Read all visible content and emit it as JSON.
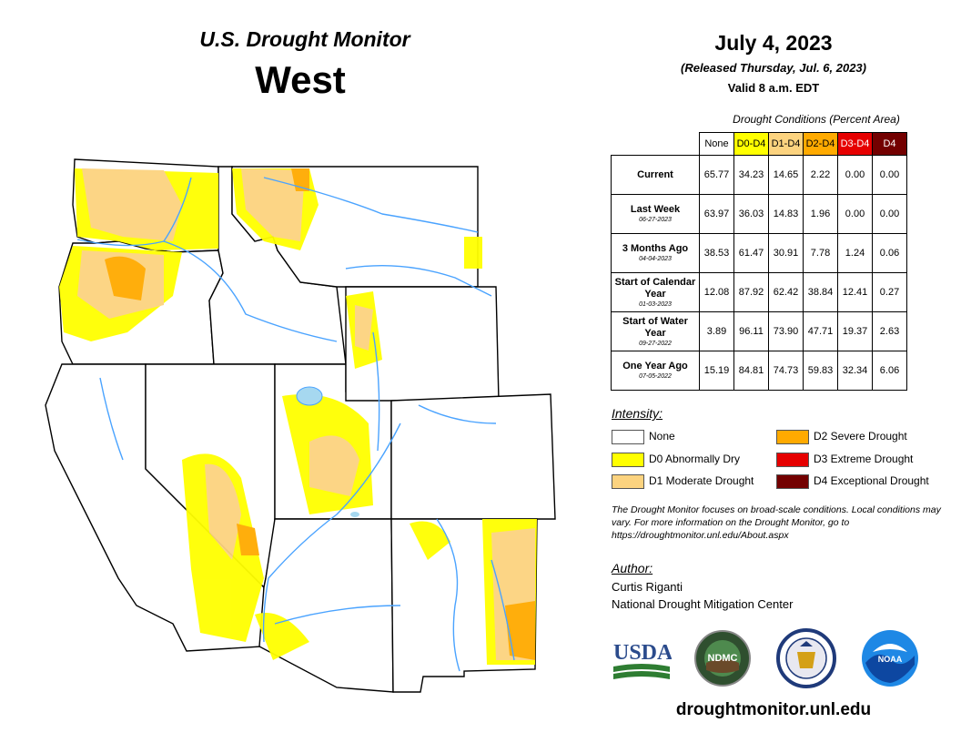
{
  "header": {
    "product": "U.S. Drought Monitor",
    "region": "West",
    "date": "July 4, 2023",
    "released": "(Released Thursday, Jul. 6, 2023)",
    "valid": "Valid 8 a.m. EDT"
  },
  "table": {
    "caption": "Drought Conditions (Percent Area)",
    "columns": [
      {
        "label": "None",
        "color": "#ffffff",
        "text_color": "#000000"
      },
      {
        "label": "D0-D4",
        "color": "#ffff00",
        "text_color": "#000000"
      },
      {
        "label": "D1-D4",
        "color": "#fcd37f",
        "text_color": "#000000"
      },
      {
        "label": "D2-D4",
        "color": "#ffaa00",
        "text_color": "#000000"
      },
      {
        "label": "D3-D4",
        "color": "#e60000",
        "text_color": "#ffffff"
      },
      {
        "label": "D4",
        "color": "#730000",
        "text_color": "#ffffff"
      }
    ],
    "rows": [
      {
        "label": "Current",
        "date": "",
        "values": [
          "65.77",
          "34.23",
          "14.65",
          "2.22",
          "0.00",
          "0.00"
        ]
      },
      {
        "label": "Last Week",
        "date": "06-27-2023",
        "values": [
          "63.97",
          "36.03",
          "14.83",
          "1.96",
          "0.00",
          "0.00"
        ]
      },
      {
        "label": "3 Months Ago",
        "date": "04-04-2023",
        "values": [
          "38.53",
          "61.47",
          "30.91",
          "7.78",
          "1.24",
          "0.06"
        ]
      },
      {
        "label": "Start of Calendar Year",
        "date": "01-03-2023",
        "values": [
          "12.08",
          "87.92",
          "62.42",
          "38.84",
          "12.41",
          "0.27"
        ]
      },
      {
        "label": "Start of Water Year",
        "date": "09-27-2022",
        "values": [
          "3.89",
          "96.11",
          "73.90",
          "47.71",
          "19.37",
          "2.63"
        ]
      },
      {
        "label": "One Year Ago",
        "date": "07-05-2022",
        "values": [
          "15.19",
          "84.81",
          "74.73",
          "59.83",
          "32.34",
          "6.06"
        ]
      }
    ]
  },
  "legend": {
    "title": "Intensity:",
    "items": [
      {
        "label": "None",
        "color": "#ffffff"
      },
      {
        "label": "D0 Abnormally Dry",
        "color": "#ffff00"
      },
      {
        "label": "D1 Moderate Drought",
        "color": "#fcd37f"
      },
      {
        "label": "D2 Severe Drought",
        "color": "#ffaa00"
      },
      {
        "label": "D3 Extreme Drought",
        "color": "#e60000"
      },
      {
        "label": "D4 Exceptional Drought",
        "color": "#730000"
      }
    ]
  },
  "note": "The Drought Monitor focuses on broad-scale conditions. Local conditions may vary. For more information on the Drought Monitor, go to https://droughtmonitor.unl.edu/About.aspx",
  "author": {
    "label": "Author:",
    "name": "Curtis Riganti",
    "org": "National Drought Mitigation Center"
  },
  "logos": {
    "usda": "USDA",
    "ndmc": "NDMC",
    "noaa": "NOAA"
  },
  "website": "droughtmonitor.unl.edu",
  "map_colors": {
    "water": "#4aa3ff",
    "lake": "#a6d8f0",
    "border": "#000000",
    "county": "#555555"
  }
}
